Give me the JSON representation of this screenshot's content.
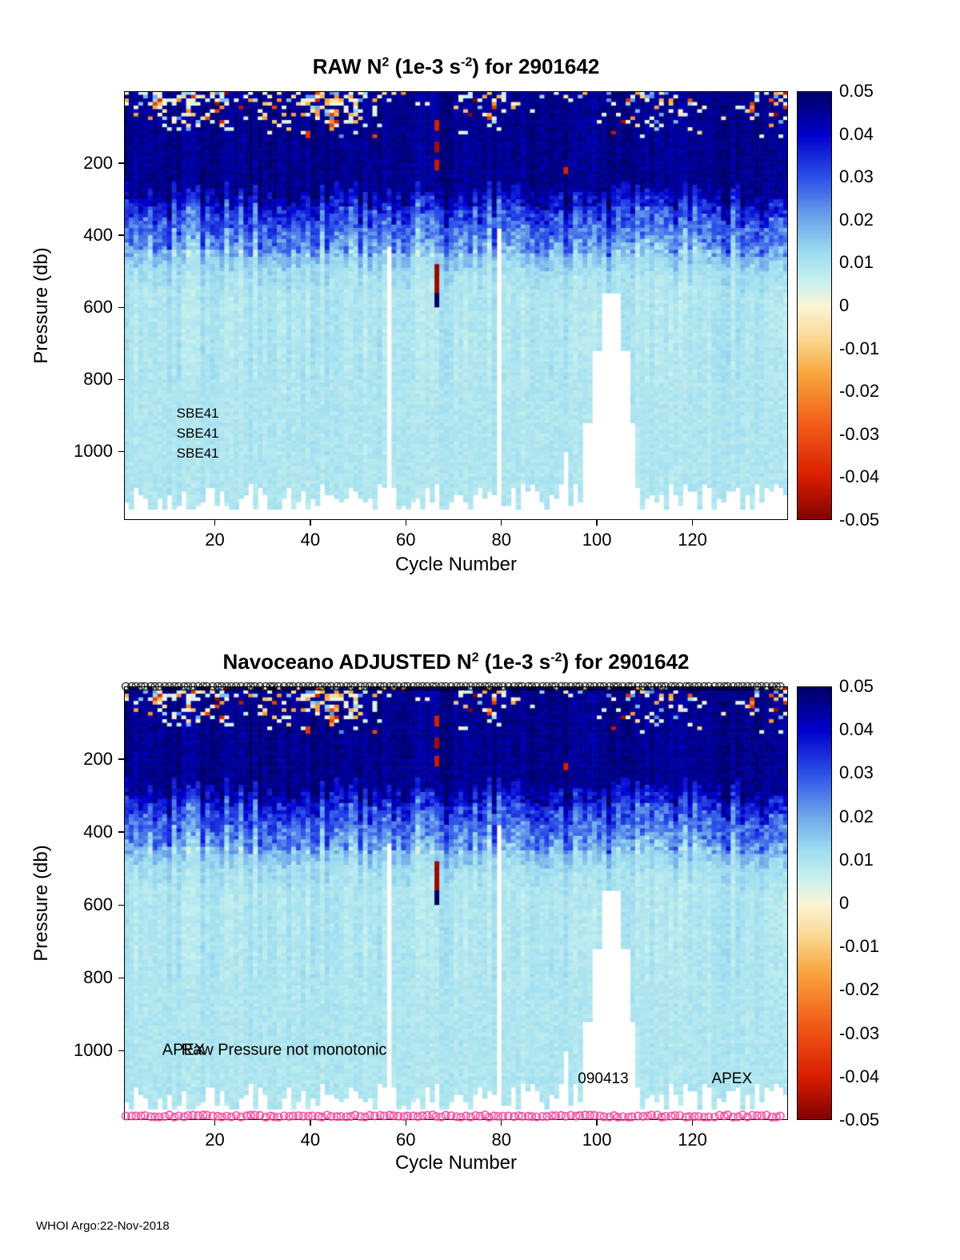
{
  "footer": "WHOI Argo:22-Nov-2018",
  "colormap_stops": [
    {
      "v": 0.05,
      "c": "#000064"
    },
    {
      "v": 0.04,
      "c": "#0000CC"
    },
    {
      "v": 0.03,
      "c": "#2D50E8"
    },
    {
      "v": 0.02,
      "c": "#70A8EA"
    },
    {
      "v": 0.012,
      "c": "#A0DEF0"
    },
    {
      "v": 0.006,
      "c": "#C6F0EE"
    },
    {
      "v": 0.0,
      "c": "#FBF4D6"
    },
    {
      "v": -0.008,
      "c": "#FAD690"
    },
    {
      "v": -0.016,
      "c": "#F8A43C"
    },
    {
      "v": -0.028,
      "c": "#F25A18"
    },
    {
      "v": -0.04,
      "c": "#D81E00"
    },
    {
      "v": -0.05,
      "c": "#800000"
    }
  ],
  "chart_data": [
    {
      "type": "heatmap",
      "title_segments": [
        {
          "t": "RAW N"
        },
        {
          "t": "2",
          "sup": true
        },
        {
          "t": " (1e-3 s"
        },
        {
          "t": "-2",
          "sup": true
        },
        {
          "t": ") for 2901642"
        }
      ],
      "xlabel": "Cycle Number",
      "ylabel": "Pressure (db)",
      "x_range": [
        1,
        139
      ],
      "y_range": [
        0,
        1190
      ],
      "y_axis_reversed": true,
      "xticks": [
        20,
        40,
        60,
        80,
        100,
        120
      ],
      "yticks": [
        200,
        400,
        600,
        800,
        1000
      ],
      "colorbar_ticks": [
        "0.05",
        "0.04",
        "0.03",
        "0.02",
        "0.01",
        "0",
        "-0.01",
        "-0.02",
        "-0.03",
        "-0.04",
        "-0.05"
      ],
      "colorbar_range": [
        -0.05,
        0.05
      ],
      "seed": 7,
      "field_profile": [
        {
          "p_max": 290,
          "v": 0.046
        },
        {
          "p_max": 340,
          "v": 0.037
        },
        {
          "p_max": 420,
          "v": 0.027
        },
        {
          "p_max": 460,
          "v": 0.018
        },
        {
          "p_max": 520,
          "v": 0.012
        },
        {
          "p_max": 1190,
          "v": 0.0095
        }
      ],
      "gaps": [
        {
          "c0": 56,
          "c1": 57,
          "p0": 430,
          "p1": 1190
        },
        {
          "c0": 79,
          "c1": 80,
          "p0": 385,
          "p1": 1190
        },
        {
          "c0": 101,
          "c1": 105,
          "p0": 560,
          "p1": 720
        },
        {
          "c0": 99,
          "c1": 107,
          "p0": 720,
          "p1": 920
        },
        {
          "c0": 97,
          "c1": 108,
          "p0": 920,
          "p1": 1190
        },
        {
          "c0": 93,
          "c1": 94,
          "p0": 1000,
          "p1": 1190
        }
      ],
      "features": [
        {
          "c0": 66,
          "c1": 67,
          "p0": 480,
          "p1": 560,
          "v": -0.047
        },
        {
          "c0": 66,
          "c1": 67,
          "p0": 560,
          "p1": 605,
          "v": 0.05
        },
        {
          "c0": 66,
          "c1": 67,
          "p0": 85,
          "p1": 110,
          "v": -0.04
        },
        {
          "c0": 66,
          "c1": 67,
          "p0": 145,
          "p1": 168,
          "v": -0.046
        },
        {
          "c0": 66,
          "c1": 67,
          "p0": 195,
          "p1": 218,
          "v": -0.042
        },
        {
          "c0": 93,
          "c1": 94,
          "p0": 212,
          "p1": 232,
          "v": -0.04
        },
        {
          "c0": 39,
          "c1": 40,
          "p0": 112,
          "p1": 128,
          "v": -0.035
        }
      ],
      "annotations": [
        {
          "text": "SBE41",
          "c": 12,
          "p": 895,
          "size": 17
        },
        {
          "text": "SBE41",
          "c": 12,
          "p": 950,
          "size": 17
        },
        {
          "text": "SBE41",
          "c": 12,
          "p": 1005,
          "size": 17
        }
      ],
      "edge_markers": null
    },
    {
      "type": "heatmap",
      "title_segments": [
        {
          "t": "Navoceano ADJUSTED N"
        },
        {
          "t": "2",
          "sup": true
        },
        {
          "t": " (1e-3 s"
        },
        {
          "t": "-2",
          "sup": true
        },
        {
          "t": ") for 2901642"
        }
      ],
      "xlabel": "Cycle Number",
      "ylabel": "Pressure (db)",
      "x_range": [
        1,
        139
      ],
      "y_range": [
        0,
        1190
      ],
      "y_axis_reversed": true,
      "xticks": [
        20,
        40,
        60,
        80,
        100,
        120
      ],
      "yticks": [
        200,
        400,
        600,
        800,
        1000
      ],
      "colorbar_ticks": [
        "0.05",
        "0.04",
        "0.03",
        "0.02",
        "0.01",
        "0",
        "-0.01",
        "-0.02",
        "-0.03",
        "-0.04",
        "-0.05"
      ],
      "colorbar_range": [
        -0.05,
        0.05
      ],
      "seed": 7,
      "field_profile": [
        {
          "p_max": 290,
          "v": 0.046
        },
        {
          "p_max": 340,
          "v": 0.037
        },
        {
          "p_max": 420,
          "v": 0.027
        },
        {
          "p_max": 460,
          "v": 0.018
        },
        {
          "p_max": 520,
          "v": 0.012
        },
        {
          "p_max": 1190,
          "v": 0.0095
        }
      ],
      "gaps": [
        {
          "c0": 56,
          "c1": 57,
          "p0": 430,
          "p1": 1190
        },
        {
          "c0": 79,
          "c1": 80,
          "p0": 385,
          "p1": 1190
        },
        {
          "c0": 101,
          "c1": 105,
          "p0": 560,
          "p1": 720
        },
        {
          "c0": 99,
          "c1": 107,
          "p0": 720,
          "p1": 920
        },
        {
          "c0": 97,
          "c1": 108,
          "p0": 920,
          "p1": 1190
        },
        {
          "c0": 93,
          "c1": 94,
          "p0": 1000,
          "p1": 1190
        }
      ],
      "features": [
        {
          "c0": 66,
          "c1": 67,
          "p0": 480,
          "p1": 560,
          "v": -0.047
        },
        {
          "c0": 66,
          "c1": 67,
          "p0": 560,
          "p1": 605,
          "v": 0.05
        },
        {
          "c0": 66,
          "c1": 67,
          "p0": 85,
          "p1": 110,
          "v": -0.04
        },
        {
          "c0": 66,
          "c1": 67,
          "p0": 145,
          "p1": 168,
          "v": -0.046
        },
        {
          "c0": 66,
          "c1": 67,
          "p0": 195,
          "p1": 218,
          "v": -0.042
        },
        {
          "c0": 93,
          "c1": 94,
          "p0": 212,
          "p1": 232,
          "v": -0.04
        },
        {
          "c0": 39,
          "c1": 40,
          "p0": 112,
          "p1": 128,
          "v": -0.035
        }
      ],
      "annotations": [
        {
          "text": "APEX",
          "c": 9,
          "p": 1000,
          "size": 20
        },
        {
          "text": "Raw Pressure not monotonic",
          "c": 13,
          "p": 1000,
          "size": 20
        },
        {
          "text": "090413",
          "c": 96,
          "p": 1078,
          "size": 19
        },
        {
          "text": "APEX",
          "c": 124,
          "p": 1078,
          "size": 19
        }
      ],
      "edge_markers": {
        "top": {
          "color": "#000000",
          "symbol": "circle"
        },
        "bottom": {
          "color": "#F03C96",
          "symbol": "circle"
        }
      }
    }
  ]
}
